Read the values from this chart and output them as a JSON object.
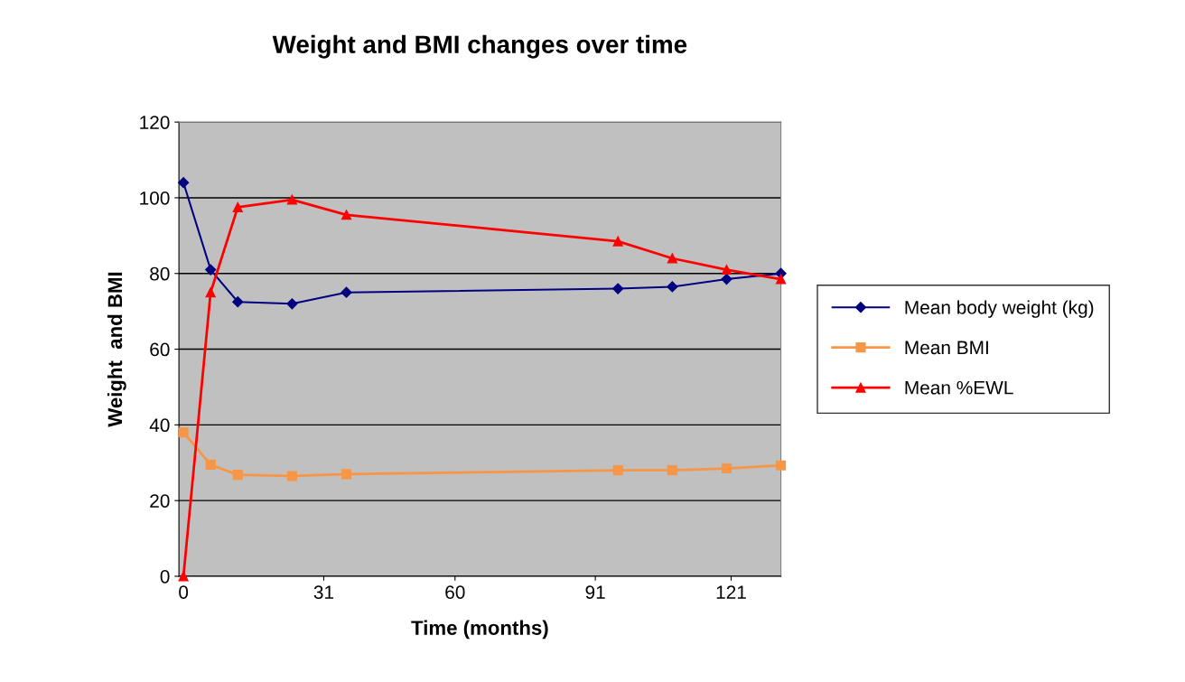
{
  "chart_data": {
    "type": "line",
    "title": "Weight and BMI changes over time",
    "xlabel": "Time (months)",
    "ylabel": "Weight  and BMI",
    "x": [
      0,
      6,
      12,
      24,
      36,
      96,
      108,
      120,
      132
    ],
    "series": [
      {
        "name": "Mean body weight (kg)",
        "color": "#000080",
        "marker": "diamond",
        "values": [
          104,
          81,
          72.5,
          72,
          75,
          76,
          76.5,
          78.5,
          80
        ]
      },
      {
        "name": "Mean BMI",
        "color": "#f79646",
        "marker": "square",
        "values": [
          38,
          29.5,
          26.8,
          26.5,
          27,
          28,
          28,
          28.5,
          29.3
        ]
      },
      {
        "name": "Mean %EWL",
        "color": "#ff0000",
        "marker": "triangle",
        "values": [
          0,
          75,
          97.5,
          99.5,
          95.5,
          88.5,
          84,
          81,
          78.5
        ]
      }
    ],
    "xlim": [
      -1,
      132
    ],
    "xticks": [
      0,
      31,
      60,
      91,
      121
    ],
    "ylim": [
      0,
      120
    ],
    "yticks": [
      0,
      20,
      40,
      60,
      80,
      100,
      120
    ],
    "grid": "y",
    "legend": "right"
  }
}
